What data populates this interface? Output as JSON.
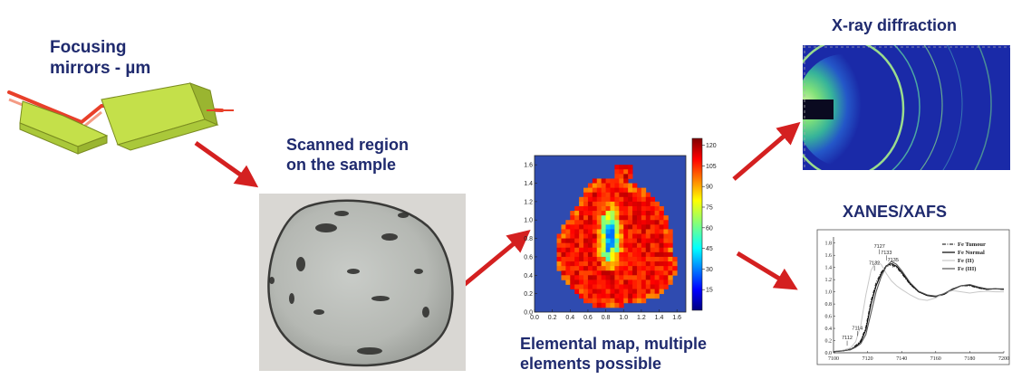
{
  "labels": {
    "mirrors_line1": "Focusing",
    "mirrors_line2": "mirrors - µm",
    "scanned_line1": "Scanned region",
    "scanned_line2": "on the sample",
    "xrd": "X-ray diffraction",
    "xanes": "XANES/XAFS",
    "map_line1": "Elemental map, multiple",
    "map_line2": "elements possible"
  },
  "colors": {
    "label_text": "#1f2a6e",
    "arrow": "#d42020",
    "beam": "#e8402a",
    "mirror": "#c4e04a",
    "map_background": "#2f4bb0",
    "xrd_background": "#1a2aa8"
  },
  "chart_data": [
    {
      "type": "heatmap",
      "title": "",
      "xlabel": "",
      "ylabel": "",
      "x_ticks": [
        "0.0",
        "0.2",
        "0.4",
        "0.6",
        "0.8",
        "1.0",
        "1.2",
        "1.4",
        "1.6"
      ],
      "y_ticks": [
        "0.0",
        "0.2",
        "0.4",
        "0.6",
        "0.8",
        "1.0",
        "1.2",
        "1.4",
        "1.6"
      ],
      "xlim": [
        0,
        1.7
      ],
      "ylim": [
        0,
        1.7
      ],
      "colorbar_ticks": [
        "15",
        "30",
        "45",
        "60",
        "75",
        "90",
        "105",
        "120"
      ],
      "colorbar_range": [
        0,
        125
      ],
      "colormap": "jet"
    },
    {
      "type": "line",
      "title": "",
      "xlabel": "",
      "ylabel": "",
      "x_ticks": [
        "7100",
        "7120",
        "7140",
        "7160",
        "7180",
        "7200"
      ],
      "y_ticks": [
        "0.0",
        "0.2",
        "0.4",
        "0.6",
        "0.8",
        "1.0",
        "1.2",
        "1.4",
        "1.6",
        "1.8"
      ],
      "xlim": [
        7100,
        7200
      ],
      "ylim": [
        0,
        1.9
      ],
      "legend_position": "top-right",
      "series": [
        {
          "name": "Fe Tumour",
          "style": "dash-dot",
          "color": "#333333",
          "x": [
            7100,
            7105,
            7110,
            7113,
            7116,
            7119,
            7122,
            7125,
            7128,
            7131,
            7134,
            7137,
            7140,
            7145,
            7150,
            7155,
            7160,
            7165,
            7170,
            7175,
            7180,
            7185,
            7190,
            7195,
            7200
          ],
          "y": [
            0.02,
            0.03,
            0.06,
            0.12,
            0.2,
            0.42,
            0.85,
            1.15,
            1.32,
            1.42,
            1.44,
            1.4,
            1.3,
            1.12,
            1.0,
            0.94,
            0.93,
            0.97,
            1.05,
            1.1,
            1.1,
            1.06,
            1.04,
            1.05,
            1.04
          ]
        },
        {
          "name": "Fe Normal",
          "style": "solid",
          "color": "#000000",
          "x": [
            7100,
            7105,
            7110,
            7113,
            7116,
            7119,
            7122,
            7125,
            7128,
            7131,
            7134,
            7137,
            7140,
            7145,
            7150,
            7155,
            7160,
            7165,
            7170,
            7175,
            7180,
            7185,
            7190,
            7195,
            7200
          ],
          "y": [
            0.02,
            0.03,
            0.05,
            0.1,
            0.18,
            0.38,
            0.8,
            1.1,
            1.3,
            1.43,
            1.46,
            1.42,
            1.32,
            1.13,
            1.0,
            0.94,
            0.92,
            0.96,
            1.04,
            1.1,
            1.11,
            1.07,
            1.04,
            1.05,
            1.04
          ]
        },
        {
          "name": "Fe (II)",
          "style": "solid",
          "color": "#c8c8c8",
          "x": [
            7100,
            7105,
            7110,
            7113,
            7116,
            7119,
            7122,
            7125,
            7128,
            7131,
            7134,
            7137,
            7140,
            7145,
            7150,
            7155,
            7160,
            7165,
            7170,
            7175,
            7180,
            7185,
            7190,
            7195,
            7200
          ],
          "y": [
            0.02,
            0.04,
            0.08,
            0.18,
            0.45,
            0.95,
            1.35,
            1.5,
            1.45,
            1.3,
            1.18,
            1.1,
            1.04,
            0.95,
            0.88,
            0.86,
            0.9,
            0.98,
            1.02,
            1.0,
            0.98,
            1.0,
            1.01,
            1.0,
            1.0
          ]
        },
        {
          "name": "Fe (III)",
          "style": "solid",
          "color": "#555555",
          "x": [
            7100,
            7105,
            7110,
            7113,
            7116,
            7119,
            7122,
            7125,
            7128,
            7131,
            7134,
            7137,
            7140,
            7145,
            7150,
            7155,
            7160,
            7165,
            7170,
            7175,
            7180,
            7185,
            7190,
            7195,
            7200
          ],
          "y": [
            0.02,
            0.03,
            0.05,
            0.09,
            0.15,
            0.3,
            0.65,
            1.0,
            1.25,
            1.42,
            1.5,
            1.45,
            1.35,
            1.15,
            1.01,
            0.95,
            0.93,
            0.97,
            1.05,
            1.1,
            1.12,
            1.08,
            1.05,
            1.05,
            1.05
          ]
        }
      ],
      "annotations": [
        {
          "text": "7127",
          "x": 7127,
          "y": 1.72
        },
        {
          "text": "7133",
          "x": 7131,
          "y": 1.62
        },
        {
          "text": "7132",
          "x": 7124,
          "y": 1.45
        },
        {
          "text": "7135",
          "x": 7135,
          "y": 1.5
        },
        {
          "text": "7114",
          "x": 7114,
          "y": 0.38
        },
        {
          "text": "7112",
          "x": 7108,
          "y": 0.22
        }
      ]
    }
  ]
}
